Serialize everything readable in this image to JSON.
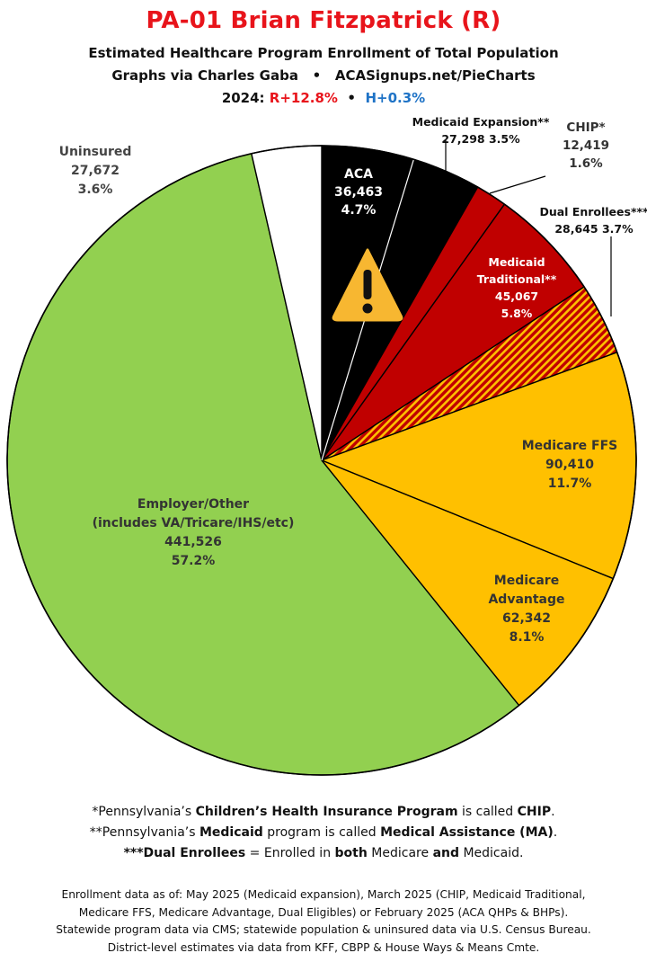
{
  "header": {
    "title": "PA-01 Brian Fitzpatrick (R)",
    "subtitle": "Estimated Healthcare Program Enrollment of Total Population",
    "credit_left": "Graphs via Charles Gaba",
    "bullet": "•",
    "credit_right": "ACASignups.net/PieCharts",
    "year_label": "2024: ",
    "r_margin": "R+12.8%",
    "h_margin": "H+0.3%"
  },
  "chart_data": {
    "type": "pie",
    "start_angle_deg": 0,
    "direction": "clockwise",
    "slices": [
      {
        "name": "ACA",
        "value": 36463,
        "percent": "4.7%",
        "value_label": "36,463",
        "color": "#000000",
        "label_color": "#ffffff",
        "warning": true
      },
      {
        "name": "Medicaid Expansion**",
        "value": 27298,
        "percent": "3.5%",
        "value_label": "27,298",
        "color": "#000000",
        "label_color": "#111111"
      },
      {
        "name": "CHIP*",
        "value": 12419,
        "percent": "1.6%",
        "value_label": "12,419",
        "color": "#c00000",
        "label_color": "#333333"
      },
      {
        "name": "Medicaid Traditional**",
        "value": 45067,
        "percent": "5.8%",
        "value_label": "45,067",
        "color": "#c00000",
        "label_color": "#ffffff"
      },
      {
        "name": "Dual Enrollees***",
        "value": 28645,
        "percent": "3.7%",
        "value_label": "28,645",
        "color": "#c00000",
        "label_color": "#111111",
        "pattern": "hatch-red-gold"
      },
      {
        "name": "Medicare FFS",
        "value": 90410,
        "percent": "11.7%",
        "value_label": "90,410",
        "color": "#ffc000",
        "label_color": "#333333"
      },
      {
        "name": "Medicare Advantage",
        "value": 62342,
        "percent": "8.1%",
        "value_label": "62,342",
        "color": "#ffc000",
        "label_color": "#333333"
      },
      {
        "name": "Employer/Other",
        "value": 441526,
        "percent": "57.2%",
        "value_label": "441,526",
        "note": "(includes VA/Tricare/IHS/etc)",
        "color": "#92d050",
        "label_color": "#333333"
      },
      {
        "name": "Uninsured",
        "value": 27672,
        "percent": "3.6%",
        "value_label": "27,672",
        "color": "#ffffff",
        "label_color": "#444444"
      }
    ]
  },
  "notes": {
    "n1_a": "*Pennsylvania’s ",
    "n1_b": "Children’s Health Insurance Program",
    "n1_c": " is called ",
    "n1_d": "CHIP",
    "n1_e": ".",
    "n2_a": "**Pennsylvania’s ",
    "n2_b": "Medicaid",
    "n2_c": " program is called ",
    "n2_d": "Medical Assistance (MA)",
    "n2_e": ".",
    "n3_a": "***Dual Enrollees",
    "n3_b": " = Enrolled in ",
    "n3_c": "both",
    "n3_d": " Medicare ",
    "n3_e": "and",
    "n3_f": " Medicaid."
  },
  "footer": {
    "line1": "Enrollment data as of: May 2025 (Medicaid expansion), March 2025 (CHIP, Medicaid Traditional,",
    "line2": "Medicare FFS, Medicare Advantage, Dual Eligibles) or February 2025 (ACA QHPs & BHPs).",
    "line3": "Statewide program data via CMS; statewide population & uninsured data via U.S. Census Bureau.",
    "line4": "District-level estimates via data from KFF, CBPP & House Ways & Means Cmte."
  }
}
